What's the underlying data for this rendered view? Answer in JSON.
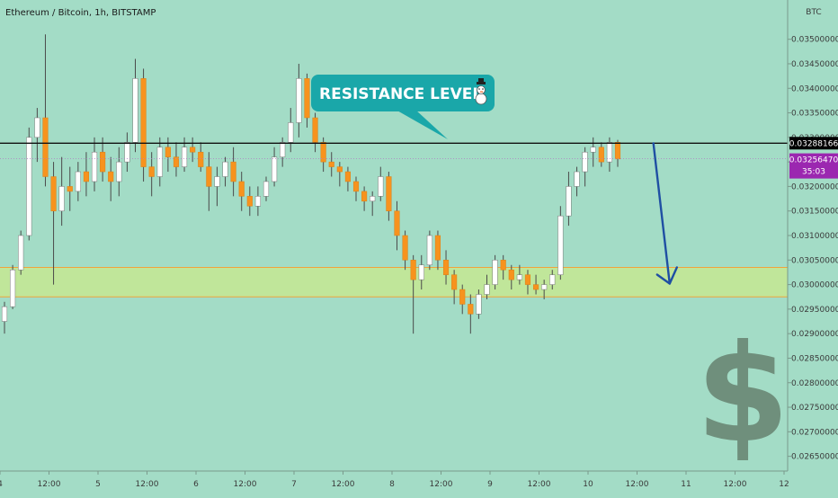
{
  "header": {
    "title": "Ethereum / Bitcoin, 1h, BITSTAMP"
  },
  "axis": {
    "currency": "BTC"
  },
  "colors": {
    "background": "#a3dcc6",
    "candle_up": "#ffffff",
    "candle_down": "#f7931e",
    "wick": "#4a4a4a",
    "resistance_line": "#111111",
    "support_zone_fill": "#c0e69a",
    "support_zone_border": "#f0a33c",
    "arrow": "#1f4fa3",
    "callout": "#1aa7a9",
    "price_label": "#000000",
    "last_price_label": "#9b27b0"
  },
  "annotations": {
    "callout_text": "RESISTANCE LEVEL",
    "callout_icon": "snowman-icon",
    "watermark_icon": "dollar-sign-icon"
  },
  "chart_data": {
    "type": "candlestick",
    "title": "Ethereum / Bitcoin, 1h, BITSTAMP",
    "ylabel": "BTC",
    "ylim": [
      0.0262,
      0.0358
    ],
    "yticks": [
      "0.03500000",
      "0.03450000",
      "0.03400000",
      "0.03350000",
      "0.03300000",
      "0.03250000",
      "0.03200000",
      "0.03150000",
      "0.03100000",
      "0.03050000",
      "0.03000000",
      "0.02950000",
      "0.02900000",
      "0.02850000",
      "0.02800000",
      "0.02750000",
      "0.02700000",
      "0.02650000"
    ],
    "xticks": [
      "4",
      "12:00",
      "5",
      "12:00",
      "6",
      "12:00",
      "7",
      "12:00",
      "8",
      "12:00",
      "9",
      "12:00",
      "10",
      "12:00",
      "11",
      "12:00",
      "12"
    ],
    "resistance_level": 0.03288166,
    "resistance_label": "0.03288166",
    "last_price": 0.0325647,
    "last_price_label": "0.03256470",
    "countdown": "35:03",
    "support_zone": [
      0.02975,
      0.03035
    ],
    "projection": {
      "from": [
        10.667,
        0.03288
      ],
      "to": [
        10.833,
        0.03002
      ]
    },
    "candles": [
      [
        0.02925,
        0.02965,
        0.029,
        0.02955
      ],
      [
        0.02955,
        0.0304,
        0.0295,
        0.0303
      ],
      [
        0.0303,
        0.0311,
        0.0302,
        0.031
      ],
      [
        0.031,
        0.0332,
        0.0309,
        0.033
      ],
      [
        0.033,
        0.0336,
        0.0325,
        0.0334
      ],
      [
        0.0334,
        0.0351,
        0.032,
        0.0322
      ],
      [
        0.0322,
        0.0325,
        0.03,
        0.0315
      ],
      [
        0.0315,
        0.0326,
        0.0312,
        0.032
      ],
      [
        0.032,
        0.0324,
        0.0315,
        0.0319
      ],
      [
        0.0319,
        0.0325,
        0.0317,
        0.0323
      ],
      [
        0.0323,
        0.0327,
        0.0318,
        0.0321
      ],
      [
        0.0321,
        0.033,
        0.0319,
        0.0327
      ],
      [
        0.0327,
        0.033,
        0.0321,
        0.0323
      ],
      [
        0.0323,
        0.0326,
        0.0317,
        0.0321
      ],
      [
        0.0321,
        0.0328,
        0.0318,
        0.0325
      ],
      [
        0.0325,
        0.0331,
        0.0323,
        0.0329
      ],
      [
        0.0329,
        0.0346,
        0.0327,
        0.0342
      ],
      [
        0.0342,
        0.0344,
        0.0321,
        0.0324
      ],
      [
        0.0324,
        0.0327,
        0.0318,
        0.0322
      ],
      [
        0.0322,
        0.033,
        0.032,
        0.0328
      ],
      [
        0.0328,
        0.033,
        0.0323,
        0.0326
      ],
      [
        0.0326,
        0.0329,
        0.0322,
        0.0324
      ],
      [
        0.0324,
        0.033,
        0.0323,
        0.0328
      ],
      [
        0.0328,
        0.033,
        0.0325,
        0.0327
      ],
      [
        0.0327,
        0.0329,
        0.0323,
        0.0324
      ],
      [
        0.0324,
        0.0327,
        0.0315,
        0.032
      ],
      [
        0.032,
        0.0324,
        0.0316,
        0.0322
      ],
      [
        0.0322,
        0.0326,
        0.032,
        0.0325
      ],
      [
        0.0325,
        0.0328,
        0.0318,
        0.0321
      ],
      [
        0.0321,
        0.0323,
        0.0315,
        0.0318
      ],
      [
        0.0318,
        0.032,
        0.0314,
        0.0316
      ],
      [
        0.0316,
        0.032,
        0.0314,
        0.0318
      ],
      [
        0.0318,
        0.0322,
        0.0317,
        0.0321
      ],
      [
        0.0321,
        0.0328,
        0.032,
        0.0326
      ],
      [
        0.0326,
        0.033,
        0.0324,
        0.0329
      ],
      [
        0.0329,
        0.0336,
        0.0327,
        0.0333
      ],
      [
        0.0333,
        0.0345,
        0.033,
        0.0342
      ],
      [
        0.0342,
        0.0343,
        0.0332,
        0.0334
      ],
      [
        0.0334,
        0.0335,
        0.0327,
        0.0329
      ],
      [
        0.0329,
        0.033,
        0.0323,
        0.0325
      ],
      [
        0.0325,
        0.0327,
        0.0322,
        0.0324
      ],
      [
        0.0324,
        0.0325,
        0.032,
        0.0323
      ],
      [
        0.0323,
        0.0324,
        0.0319,
        0.0321
      ],
      [
        0.0321,
        0.0322,
        0.0317,
        0.0319
      ],
      [
        0.0319,
        0.032,
        0.0315,
        0.0317
      ],
      [
        0.0317,
        0.0319,
        0.0314,
        0.0318
      ],
      [
        0.0318,
        0.0324,
        0.0317,
        0.0322
      ],
      [
        0.0322,
        0.0323,
        0.0313,
        0.0315
      ],
      [
        0.0315,
        0.0317,
        0.0307,
        0.031
      ],
      [
        0.031,
        0.0311,
        0.0303,
        0.0305
      ],
      [
        0.0305,
        0.0306,
        0.029,
        0.0301
      ],
      [
        0.0301,
        0.0306,
        0.0299,
        0.0304
      ],
      [
        0.0304,
        0.0311,
        0.0303,
        0.031
      ],
      [
        0.031,
        0.0311,
        0.0303,
        0.0305
      ],
      [
        0.0305,
        0.0307,
        0.03,
        0.0302
      ],
      [
        0.0302,
        0.0303,
        0.0296,
        0.0299
      ],
      [
        0.0299,
        0.03,
        0.0294,
        0.0296
      ],
      [
        0.0296,
        0.0298,
        0.029,
        0.0294
      ],
      [
        0.0294,
        0.0299,
        0.0293,
        0.0298
      ],
      [
        0.0298,
        0.0302,
        0.0297,
        0.03
      ],
      [
        0.03,
        0.0306,
        0.0299,
        0.0305
      ],
      [
        0.0305,
        0.0306,
        0.0301,
        0.0303
      ],
      [
        0.0303,
        0.0304,
        0.0299,
        0.0301
      ],
      [
        0.0301,
        0.0304,
        0.03,
        0.0302
      ],
      [
        0.0302,
        0.0303,
        0.0298,
        0.03
      ],
      [
        0.03,
        0.0302,
        0.0298,
        0.0299
      ],
      [
        0.0299,
        0.0301,
        0.0297,
        0.03
      ],
      [
        0.03,
        0.0303,
        0.0299,
        0.0302
      ],
      [
        0.0302,
        0.0316,
        0.0301,
        0.0314
      ],
      [
        0.0314,
        0.0323,
        0.0312,
        0.032
      ],
      [
        0.032,
        0.0324,
        0.0318,
        0.0323
      ],
      [
        0.0323,
        0.0328,
        0.032,
        0.0327
      ],
      [
        0.0327,
        0.033,
        0.0324,
        0.0328
      ],
      [
        0.0328,
        0.0329,
        0.0324,
        0.0325
      ],
      [
        0.0325,
        0.033,
        0.0323,
        0.0329
      ],
      [
        0.0329,
        0.03295,
        0.0324,
        0.03256
      ]
    ]
  }
}
